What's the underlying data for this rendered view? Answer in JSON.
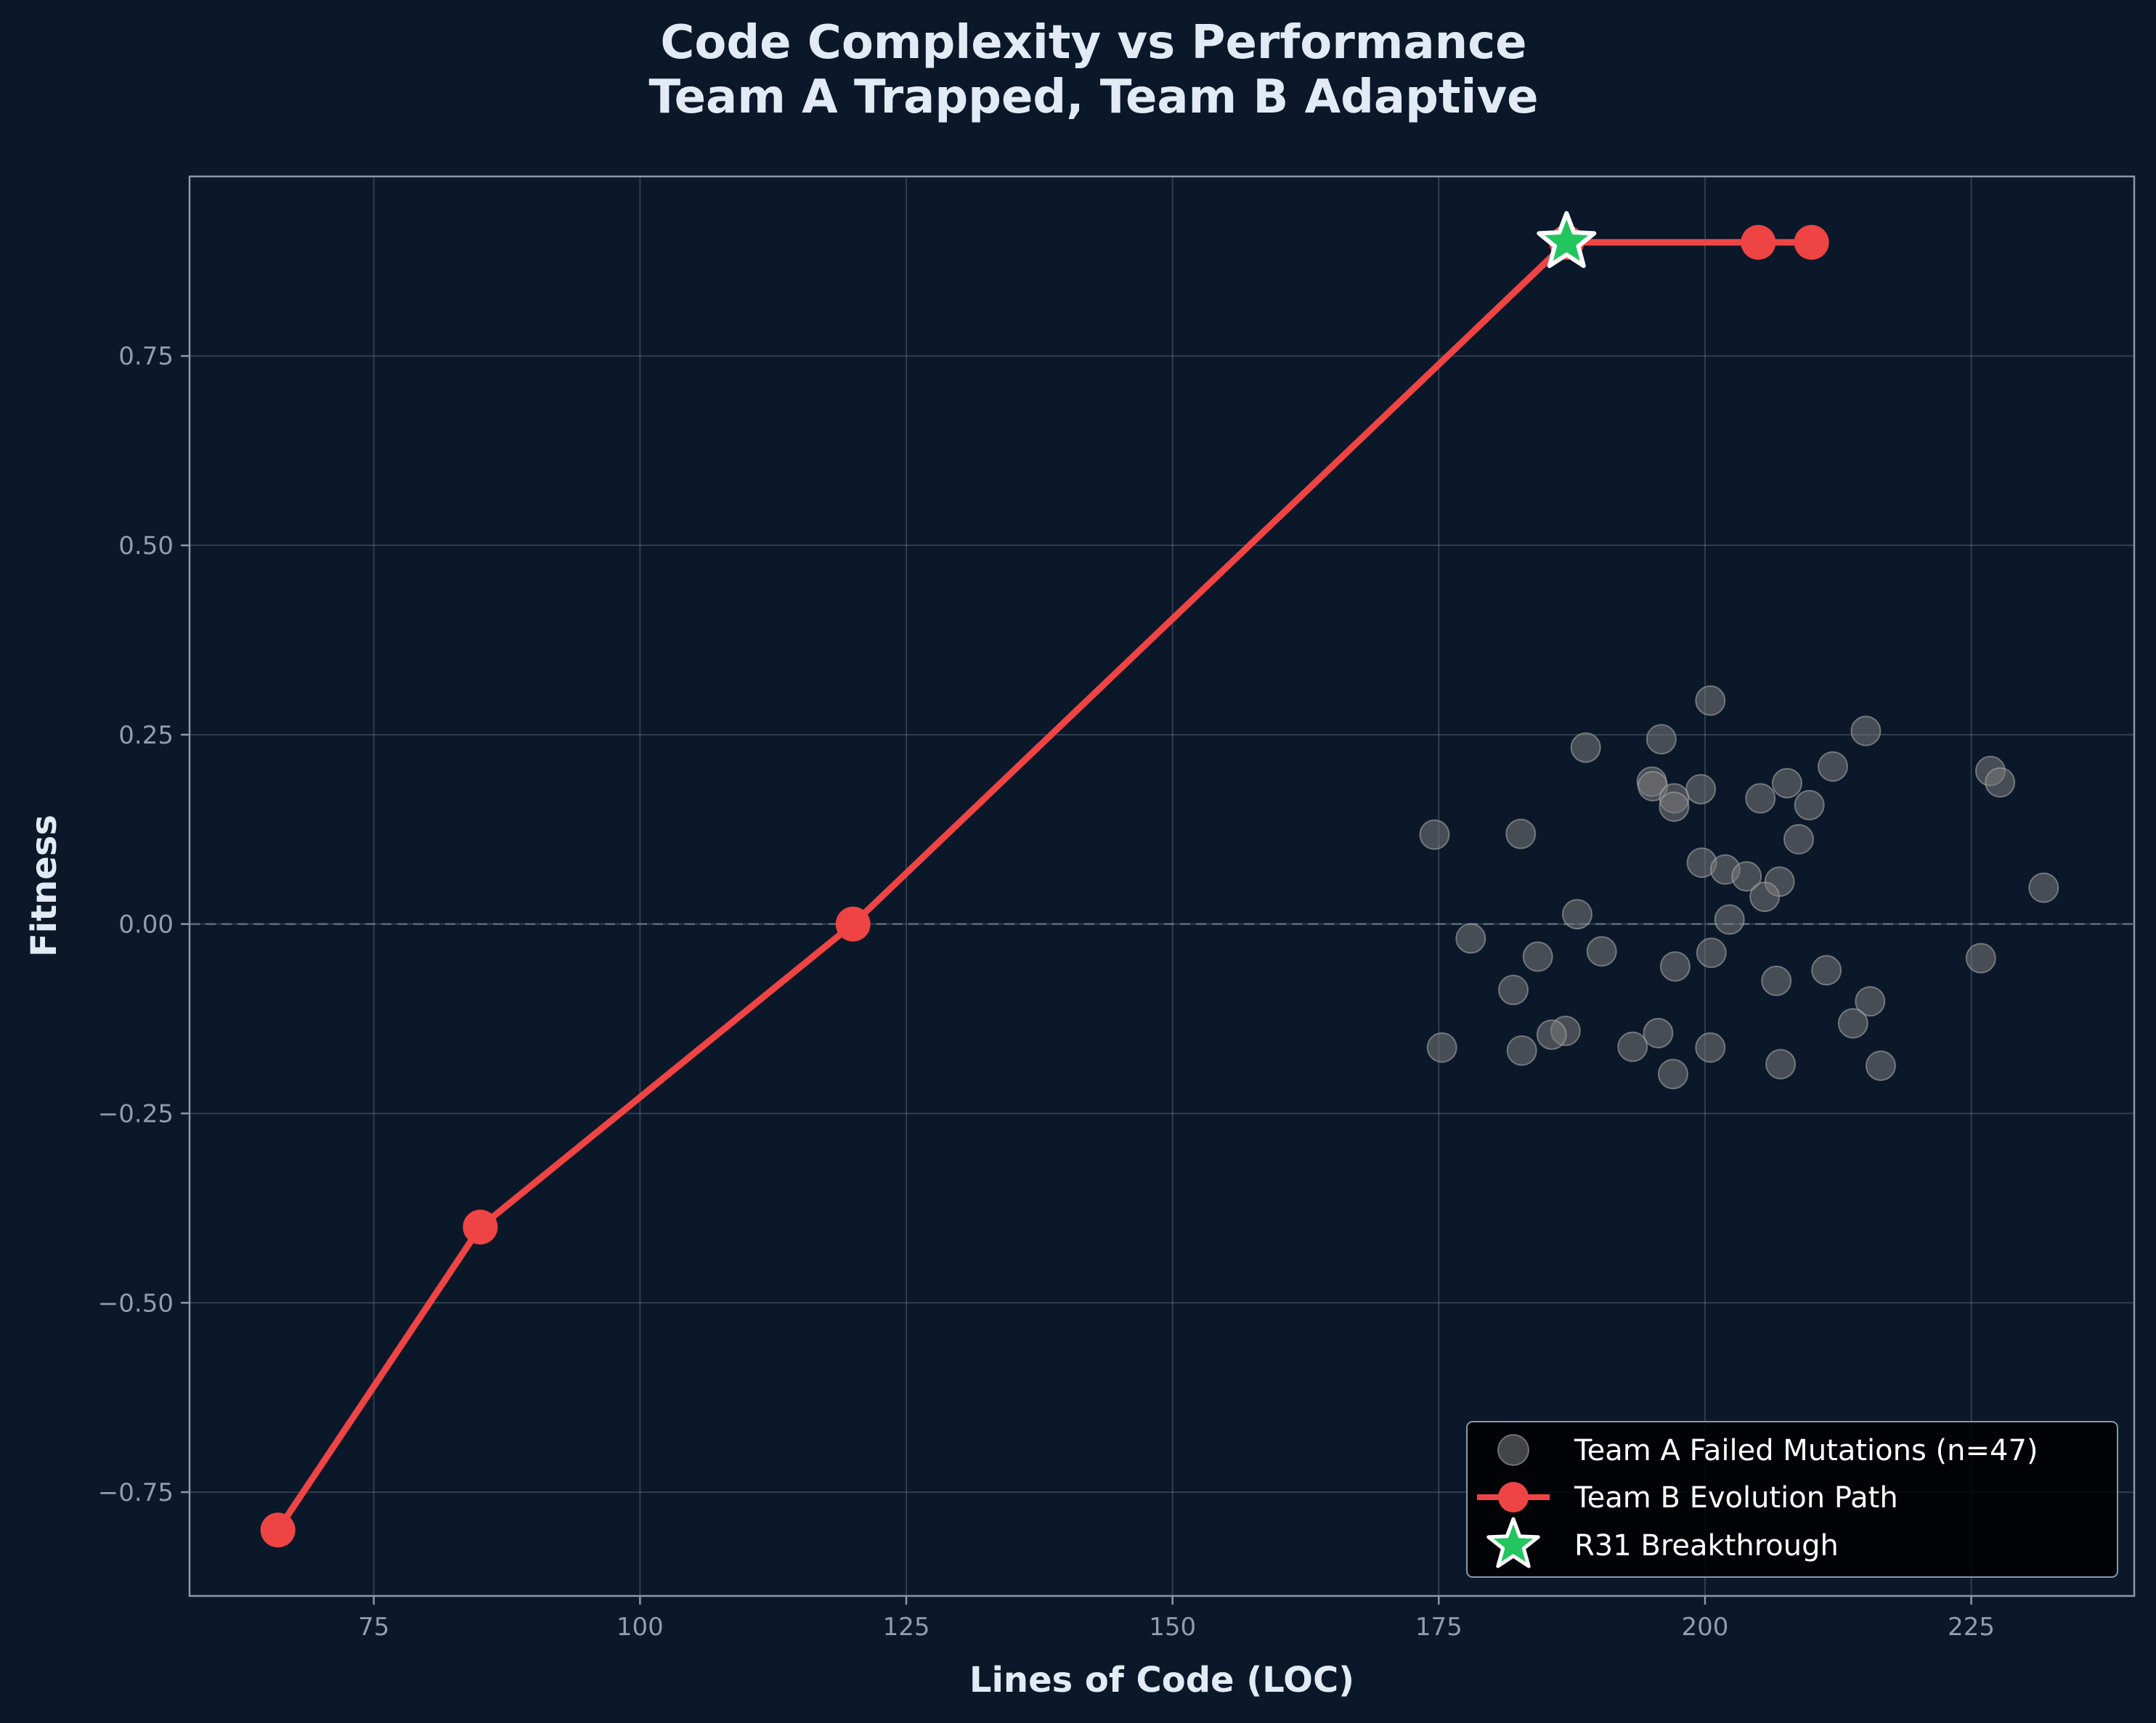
{
  "chart_data": {
    "type": "scatter",
    "title": [
      "Code Complexity vs Performance",
      "Team A Trapped, Team B Adaptive"
    ],
    "xlabel": "Lines of Code (LOC)",
    "ylabel": "Fitness",
    "xlim": [
      57.7,
      240.3
    ],
    "ylim": [
      -0.887,
      0.987
    ],
    "xticks": [
      75,
      100,
      125,
      150,
      175,
      200,
      225
    ],
    "xtick_labels": [
      "75",
      "100",
      "125",
      "150",
      "175",
      "200",
      "225"
    ],
    "yticks": [
      -0.75,
      -0.5,
      -0.25,
      0.0,
      0.25,
      0.5,
      0.75
    ],
    "ytick_labels": [
      "−0.75",
      "−0.50",
      "−0.25",
      "0.00",
      "0.25",
      "0.50",
      "0.75"
    ],
    "grid": true,
    "reference_line": {
      "y": 0,
      "style": "dashed"
    },
    "legend_position": "lower right",
    "colors": {
      "background": "#0b1829",
      "team_a": "#7a7a7a",
      "team_b": "#ef4444",
      "breakthrough": "#22c55e"
    },
    "series": [
      {
        "name": "Team A Failed Mutations (n=47)",
        "kind": "scatter",
        "points": [
          [
            200.5,
            0.295
          ],
          [
            215.1,
            0.255
          ],
          [
            195.9,
            0.244
          ],
          [
            188.8,
            0.233
          ],
          [
            212.0,
            0.208
          ],
          [
            226.8,
            0.202
          ],
          [
            195.0,
            0.188
          ],
          [
            195.1,
            0.182
          ],
          [
            207.7,
            0.186
          ],
          [
            227.7,
            0.187
          ],
          [
            199.6,
            0.178
          ],
          [
            197.1,
            0.166
          ],
          [
            205.2,
            0.166
          ],
          [
            209.8,
            0.157
          ],
          [
            197.1,
            0.155
          ],
          [
            174.6,
            0.118
          ],
          [
            182.7,
            0.119
          ],
          [
            208.8,
            0.112
          ],
          [
            199.7,
            0.081
          ],
          [
            201.9,
            0.072
          ],
          [
            203.9,
            0.063
          ],
          [
            207.0,
            0.056
          ],
          [
            231.8,
            0.048
          ],
          [
            205.6,
            0.036
          ],
          [
            188.0,
            0.013
          ],
          [
            202.3,
            0.006
          ],
          [
            178.0,
            -0.019
          ],
          [
            200.6,
            -0.038
          ],
          [
            190.3,
            -0.036
          ],
          [
            184.3,
            -0.043
          ],
          [
            225.9,
            -0.045
          ],
          [
            197.2,
            -0.056
          ],
          [
            211.4,
            -0.061
          ],
          [
            206.7,
            -0.075
          ],
          [
            182.0,
            -0.087
          ],
          [
            215.5,
            -0.102
          ],
          [
            213.9,
            -0.131
          ],
          [
            186.9,
            -0.141
          ],
          [
            185.6,
            -0.146
          ],
          [
            195.6,
            -0.144
          ],
          [
            175.3,
            -0.163
          ],
          [
            182.8,
            -0.167
          ],
          [
            193.2,
            -0.162
          ],
          [
            200.5,
            -0.163
          ],
          [
            207.1,
            -0.185
          ],
          [
            216.5,
            -0.187
          ],
          [
            197.0,
            -0.198
          ]
        ]
      },
      {
        "name": "Team B Evolution Path",
        "kind": "line",
        "points": [
          [
            66,
            -0.8
          ],
          [
            85,
            -0.4
          ],
          [
            120,
            0.0
          ],
          [
            187,
            0.9
          ],
          [
            205,
            0.9
          ],
          [
            210,
            0.9
          ]
        ]
      },
      {
        "name": "R31 Breakthrough",
        "kind": "marker",
        "points": [
          [
            187,
            0.9
          ]
        ]
      }
    ]
  }
}
